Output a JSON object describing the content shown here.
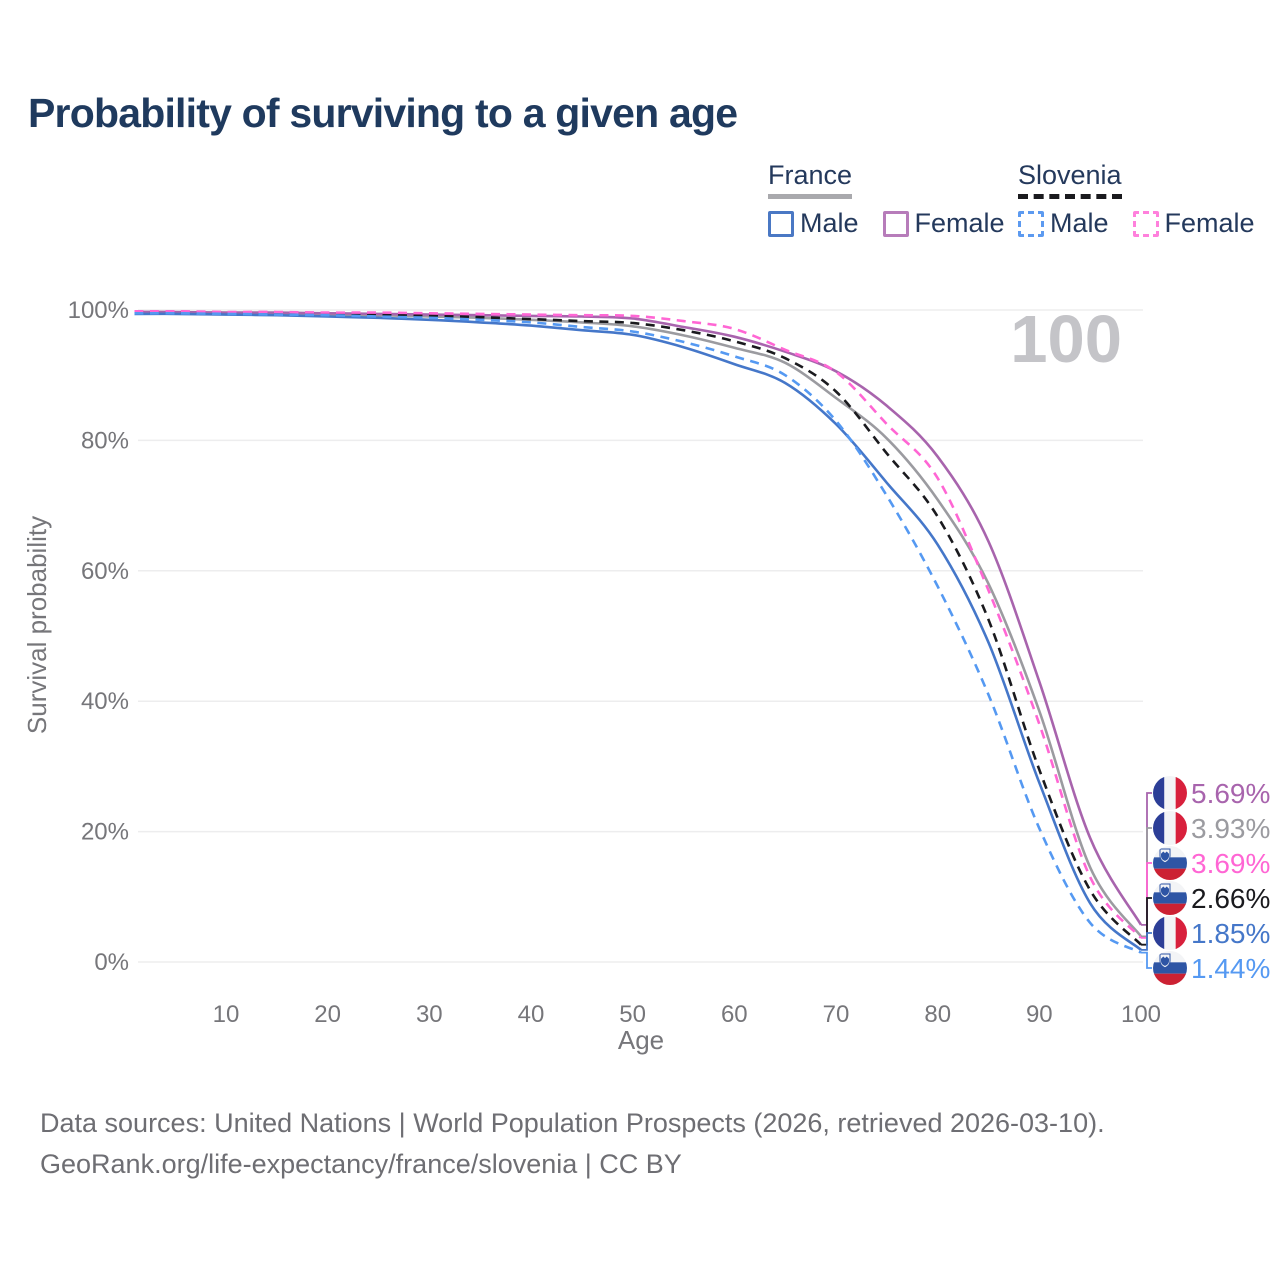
{
  "title": "Probability of surviving to a given age",
  "watermark": "100",
  "legend": {
    "groups": [
      {
        "label": "France",
        "line_style": "solid",
        "underline_color": "#a9a9ad",
        "items": [
          {
            "label": "Male",
            "swatch": "fr-male"
          },
          {
            "label": "Female",
            "swatch": "fr-female"
          }
        ]
      },
      {
        "label": "Slovenia",
        "line_style": "dashed",
        "underline_color": "#1a1a1e",
        "items": [
          {
            "label": "Male",
            "swatch": "si-male"
          },
          {
            "label": "Female",
            "swatch": "si-female"
          }
        ]
      }
    ],
    "swatch_colors": {
      "fr-male": "#4a78c4",
      "fr-female": "#b77cba",
      "si-male": "#5c9af0",
      "si-female": "#ff80dc"
    }
  },
  "flag_colors": {
    "france": [
      "#2c3e97",
      "#f3f4f6",
      "#d8203c"
    ],
    "slovenia": [
      "#f3f4f6",
      "#2e55a5",
      "#cc2133"
    ]
  },
  "chart_data": {
    "type": "line",
    "title": "Probability of surviving to a given age",
    "xlabel": "Age",
    "ylabel": "Survival probability",
    "xlim": [
      1,
      100
    ],
    "ylim": [
      0,
      100
    ],
    "grid": "horizontal",
    "x_ticks": [
      10,
      20,
      30,
      40,
      50,
      60,
      70,
      80,
      90,
      100
    ],
    "y_tick_values": [
      0,
      20,
      40,
      60,
      80,
      100
    ],
    "y_ticks": [
      "0%",
      "20%",
      "40%",
      "60%",
      "80%",
      "100%"
    ],
    "x": [
      1,
      5,
      10,
      15,
      20,
      25,
      30,
      35,
      40,
      45,
      50,
      55,
      60,
      65,
      70,
      75,
      80,
      85,
      90,
      95,
      100
    ],
    "series": [
      {
        "name": "France Total",
        "country": "France",
        "sex": "Both",
        "color": "#9b9ba0",
        "line_style": "solid",
        "flag": "france",
        "end_label": "3.93%",
        "values": [
          99.6,
          99.5,
          99.5,
          99.4,
          99.3,
          99.2,
          99.0,
          98.8,
          98.5,
          98.1,
          97.5,
          96.1,
          94.2,
          91.9,
          86.5,
          80.3,
          70.9,
          58.0,
          38.5,
          14.5,
          3.93
        ]
      },
      {
        "name": "France Female",
        "country": "France",
        "sex": "Female",
        "color": "#a864ad",
        "line_style": "solid",
        "flag": "france",
        "end_label": "5.69%",
        "values": [
          99.7,
          99.7,
          99.6,
          99.6,
          99.5,
          99.4,
          99.3,
          99.2,
          99.1,
          99.0,
          98.7,
          97.4,
          95.9,
          93.6,
          90.6,
          85.3,
          77.5,
          64.5,
          43.0,
          19.0,
          5.69
        ]
      },
      {
        "name": "France Male",
        "country": "France",
        "sex": "Male",
        "color": "#4577c9",
        "line_style": "solid",
        "flag": "france",
        "end_label": "1.85%",
        "values": [
          99.4,
          99.4,
          99.3,
          99.2,
          99.0,
          98.8,
          98.5,
          98.1,
          97.6,
          96.9,
          96.2,
          94.3,
          91.7,
          88.8,
          82.5,
          73.5,
          64.0,
          49.0,
          27.5,
          9.0,
          1.85
        ]
      },
      {
        "name": "Slovenia Total",
        "country": "Slovenia",
        "sex": "Both",
        "color": "#1a1a1e",
        "line_style": "dashed",
        "flag": "slovenia",
        "end_label": "2.66%",
        "values": [
          99.7,
          99.6,
          99.6,
          99.5,
          99.4,
          99.3,
          99.1,
          98.9,
          98.6,
          98.3,
          98.0,
          96.9,
          95.2,
          92.6,
          87.5,
          78.0,
          68.3,
          52.5,
          29.5,
          11.0,
          2.66
        ]
      },
      {
        "name": "Slovenia Female",
        "country": "Slovenia",
        "sex": "Female",
        "color": "#ff66d4",
        "line_style": "dashed",
        "flag": "slovenia",
        "end_label": "3.69%",
        "values": [
          99.8,
          99.8,
          99.7,
          99.7,
          99.6,
          99.6,
          99.5,
          99.4,
          99.3,
          99.2,
          99.1,
          98.3,
          97.1,
          93.9,
          90.5,
          82.5,
          74.2,
          57.0,
          36.5,
          13.0,
          3.69
        ]
      },
      {
        "name": "Slovenia Male",
        "country": "Slovenia",
        "sex": "Male",
        "color": "#5599f2",
        "line_style": "dashed",
        "flag": "slovenia",
        "end_label": "1.44%",
        "values": [
          99.5,
          99.5,
          99.4,
          99.3,
          99.2,
          99.0,
          98.8,
          98.5,
          98.1,
          97.4,
          96.7,
          95.1,
          92.9,
          90.0,
          83.0,
          71.5,
          57.6,
          41.0,
          20.5,
          6.0,
          1.44
        ]
      }
    ]
  },
  "footer": {
    "line1": "Data sources: United Nations | World Population Prospects (2026, retrieved 2026-03-10).",
    "line2": "GeoRank.org/life-expectancy/france/slovenia | CC BY"
  }
}
